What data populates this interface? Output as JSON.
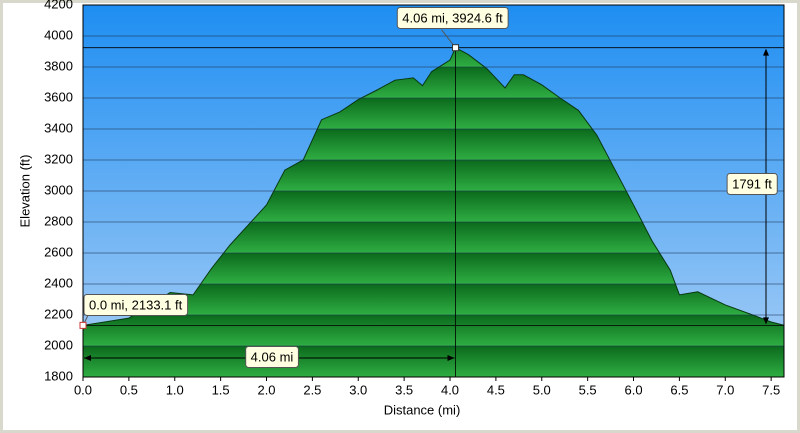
{
  "chart_data": {
    "type": "area",
    "x_label": "Distance   (mi)",
    "y_label": "Elevation (ft)",
    "x": [
      0.0,
      0.5,
      0.95,
      1.2,
      1.4,
      1.6,
      1.8,
      2.0,
      2.2,
      2.4,
      2.6,
      2.8,
      3.0,
      3.2,
      3.4,
      3.6,
      3.7,
      3.8,
      4.0,
      4.06,
      4.2,
      4.4,
      4.6,
      4.7,
      4.8,
      5.0,
      5.2,
      5.4,
      5.6,
      5.8,
      6.0,
      6.2,
      6.4,
      6.5,
      6.7,
      7.0,
      7.3,
      7.5,
      7.64
    ],
    "series": [
      {
        "name": "Elevation",
        "color": "#1a8a2e",
        "values": [
          2133.1,
          2180,
          2345,
          2330,
          2500,
          2650,
          2780,
          2910,
          3135,
          3200,
          3460,
          3510,
          3590,
          3650,
          3715,
          3730,
          3680,
          3770,
          3845,
          3924.6,
          3880,
          3790,
          3665,
          3750,
          3750,
          3685,
          3600,
          3520,
          3360,
          3135,
          2910,
          2680,
          2490,
          2330,
          2350,
          2265,
          2200,
          2155,
          2133.6
        ]
      }
    ],
    "xlim": [
      0,
      7.64
    ],
    "ylim": [
      1800,
      4200
    ],
    "xticks": [
      {
        "value": 0,
        "label": "0.0"
      },
      0.5,
      {
        "value": 1,
        "label": "1.0"
      },
      1.5,
      {
        "value": 2,
        "label": "2.0"
      },
      2.5,
      {
        "value": 3,
        "label": "3.0"
      },
      3.5,
      {
        "value": 4,
        "label": "4.0"
      },
      4.5,
      {
        "value": 5,
        "label": "5.0"
      },
      5.5,
      {
        "value": 6,
        "label": "6.0"
      },
      6.5,
      {
        "value": 7,
        "label": "7.0"
      },
      7.5
    ],
    "yticks": [
      1800,
      2000,
      2200,
      2400,
      2600,
      2800,
      3000,
      3200,
      3400,
      3600,
      3800,
      4000,
      4200
    ],
    "grid": true,
    "markers": [
      {
        "x": 4.06,
        "y": 3924.6,
        "label": "4.06 mi, 3924.6 ft"
      },
      {
        "x": 0.0,
        "y": 2133.1,
        "label": "0.0 mi, 2133.1 ft"
      }
    ],
    "spans": {
      "vertical": "1791 ft",
      "horizontal": "4.06 mi"
    }
  }
}
